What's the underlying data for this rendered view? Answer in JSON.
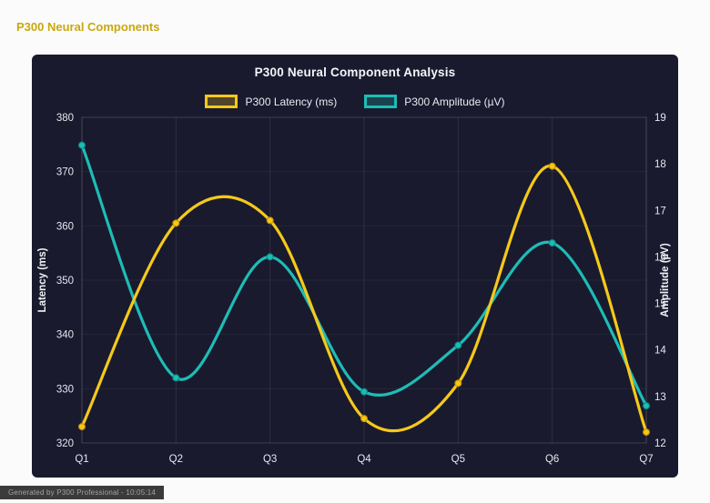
{
  "page": {
    "title": "P300 Neural Components",
    "footer": "Generated by P300 Professional - 10:05:14"
  },
  "colors": {
    "page_bg": "#fbfbfb",
    "panel_bg": "#1a1a2e",
    "title_text": "#c9a80e",
    "latency": "#f5c91a",
    "latency_dark": "#c99400",
    "amplitude": "#1dbdb5",
    "amplitude_dark": "#0f8f8a",
    "grid_vertical": "rgba(255,255,255,0.09)",
    "grid_horizontal": "rgba(255,255,255,0.05)"
  },
  "chart_data": {
    "type": "line",
    "title": "P300 Neural Component Analysis",
    "categories": [
      "Q1",
      "Q2",
      "Q3",
      "Q4",
      "Q5",
      "Q6",
      "Q7"
    ],
    "series": [
      {
        "name": "P300 Latency (ms)",
        "axis": "left",
        "color_key": "latency",
        "values": [
          323,
          360.5,
          361,
          324.5,
          331,
          371,
          322
        ]
      },
      {
        "name": "P300 Amplitude (µV)",
        "axis": "right",
        "color_key": "amplitude",
        "values": [
          18.4,
          13.4,
          16.0,
          13.1,
          14.1,
          16.3,
          12.8
        ]
      }
    ],
    "left_axis": {
      "label": "Latency (ms)",
      "min": 320,
      "max": 380,
      "ticks": [
        320,
        330,
        340,
        350,
        360,
        370,
        380
      ]
    },
    "right_axis": {
      "label": "Amplitude (µV)",
      "min": 12,
      "max": 19,
      "ticks": [
        12,
        13,
        14,
        15,
        16,
        17,
        18,
        19
      ]
    },
    "smooth": true,
    "grid": true,
    "legend_position": "top"
  }
}
